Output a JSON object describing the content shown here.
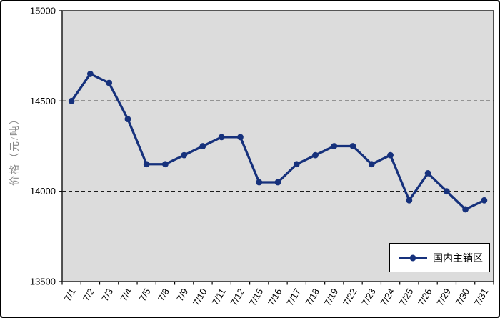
{
  "chart_data": {
    "type": "line",
    "title": "",
    "xlabel": "",
    "ylabel": "价格（元/吨）",
    "categories": [
      "7/1",
      "7/2",
      "7/3",
      "7/4",
      "7/5",
      "7/8",
      "7/9",
      "7/10",
      "7/11",
      "7/12",
      "7/15",
      "7/16",
      "7/17",
      "7/18",
      "7/19",
      "7/22",
      "7/23",
      "7/24",
      "7/25",
      "7/26",
      "7/29",
      "7/30",
      "7/31"
    ],
    "series": [
      {
        "name": "国内主销区",
        "values": [
          14500,
          14650,
          14600,
          14400,
          14150,
          14150,
          14200,
          14250,
          14300,
          14300,
          14050,
          14050,
          14150,
          14200,
          14250,
          14250,
          14150,
          14200,
          13950,
          14100,
          14000,
          13900,
          13950
        ]
      }
    ],
    "ylim": [
      13500,
      15000
    ],
    "yticks": [
      13500,
      14000,
      14500,
      15000
    ],
    "gridlines": [
      14000,
      14500
    ],
    "grid_style": "dashed",
    "legend_position": "bottom-right-inside",
    "marker": "circle",
    "colors": {
      "line": "#16317c",
      "plot_bg": "#dcdcdc",
      "plot_border": "#2b2b2b",
      "grid": "#1a1a1a",
      "axis_text": "#000000",
      "y_title_text": "#8a8a8a",
      "legend_bg": "#ffffff",
      "legend_border": "#000000",
      "outer_border": "#000000"
    }
  }
}
